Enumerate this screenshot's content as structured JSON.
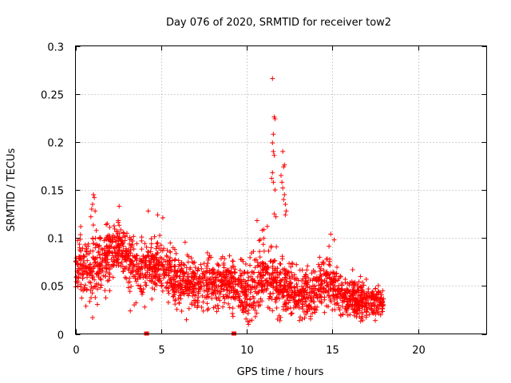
{
  "chart_data": {
    "type": "scatter",
    "title": "Day 076 of 2020, SRMTID for receiver tow2",
    "xlabel": "GPS time / hours",
    "ylabel": "SRMTID / TECUs",
    "xlim": [
      0,
      24
    ],
    "ylim": [
      0,
      0.3
    ],
    "xticks": [
      0,
      5,
      10,
      15,
      20
    ],
    "xtick_labels": [
      "0",
      "5",
      "10",
      "15",
      "20"
    ],
    "yticks": [
      0,
      0.05,
      0.1,
      0.15,
      0.2,
      0.25,
      0.3
    ],
    "ytick_labels": [
      "0",
      "0.05",
      "0.1",
      "0.15",
      "0.2",
      "0.25",
      "0.3"
    ],
    "grid": true,
    "marker": "+",
    "color": "#ff0000",
    "series": [
      {
        "name": "SRMTID",
        "profile_x": [
          0.0,
          0.25,
          0.5,
          1.0,
          1.5,
          2.0,
          2.5,
          3.0,
          3.5,
          4.0,
          4.5,
          5.0,
          5.5,
          6.0,
          7.0,
          8.0,
          9.0,
          9.5,
          10.0,
          10.5,
          11.0,
          11.5,
          12.0,
          12.5,
          13.0,
          14.0,
          14.5,
          15.0,
          15.5,
          16.0,
          16.5,
          17.0,
          17.5,
          18.0
        ],
        "profile_mean": [
          0.062,
          0.075,
          0.07,
          0.068,
          0.075,
          0.085,
          0.09,
          0.082,
          0.07,
          0.065,
          0.072,
          0.07,
          0.062,
          0.055,
          0.05,
          0.055,
          0.052,
          0.05,
          0.04,
          0.05,
          0.06,
          0.055,
          0.05,
          0.045,
          0.04,
          0.045,
          0.06,
          0.052,
          0.04,
          0.038,
          0.035,
          0.033,
          0.032,
          0.035
        ],
        "profile_spread": [
          0.018,
          0.02,
          0.022,
          0.025,
          0.022,
          0.022,
          0.02,
          0.02,
          0.02,
          0.022,
          0.022,
          0.022,
          0.02,
          0.02,
          0.018,
          0.02,
          0.018,
          0.02,
          0.02,
          0.025,
          0.025,
          0.025,
          0.02,
          0.02,
          0.018,
          0.02,
          0.02,
          0.02,
          0.015,
          0.014,
          0.014,
          0.013,
          0.012,
          0.01
        ],
        "n_points": 2200,
        "extra_points": [
          {
            "x": 11.5,
            "y": 0.266
          },
          {
            "x": 11.6,
            "y": 0.226
          },
          {
            "x": 11.65,
            "y": 0.224
          },
          {
            "x": 11.55,
            "y": 0.208
          },
          {
            "x": 11.5,
            "y": 0.199
          },
          {
            "x": 11.55,
            "y": 0.19
          },
          {
            "x": 11.6,
            "y": 0.186
          },
          {
            "x": 11.5,
            "y": 0.168
          },
          {
            "x": 11.45,
            "y": 0.162
          },
          {
            "x": 11.55,
            "y": 0.158
          },
          {
            "x": 11.65,
            "y": 0.15
          },
          {
            "x": 11.6,
            "y": 0.125
          },
          {
            "x": 11.7,
            "y": 0.122
          },
          {
            "x": 12.1,
            "y": 0.19
          },
          {
            "x": 12.2,
            "y": 0.176
          },
          {
            "x": 12.15,
            "y": 0.174
          },
          {
            "x": 12.0,
            "y": 0.165
          },
          {
            "x": 12.05,
            "y": 0.158
          },
          {
            "x": 12.1,
            "y": 0.152
          },
          {
            "x": 12.2,
            "y": 0.145
          },
          {
            "x": 12.15,
            "y": 0.14
          },
          {
            "x": 12.25,
            "y": 0.135
          },
          {
            "x": 12.3,
            "y": 0.128
          },
          {
            "x": 12.25,
            "y": 0.124
          },
          {
            "x": 11.2,
            "y": 0.112
          },
          {
            "x": 10.6,
            "y": 0.118
          },
          {
            "x": 10.9,
            "y": 0.108
          },
          {
            "x": 1.05,
            "y": 0.145
          },
          {
            "x": 1.1,
            "y": 0.142
          },
          {
            "x": 1.0,
            "y": 0.135
          },
          {
            "x": 0.95,
            "y": 0.13
          },
          {
            "x": 1.15,
            "y": 0.128
          },
          {
            "x": 0.9,
            "y": 0.122
          },
          {
            "x": 2.55,
            "y": 0.133
          },
          {
            "x": 2.5,
            "y": 0.118
          },
          {
            "x": 4.25,
            "y": 0.128
          },
          {
            "x": 4.8,
            "y": 0.124
          },
          {
            "x": 5.1,
            "y": 0.121
          },
          {
            "x": 14.9,
            "y": 0.104
          },
          {
            "x": 15.1,
            "y": 0.098
          },
          {
            "x": 1.0,
            "y": 0.017
          },
          {
            "x": 3.2,
            "y": 0.024
          },
          {
            "x": 10.1,
            "y": 0.01
          },
          {
            "x": 10.5,
            "y": 0.018
          },
          {
            "x": 17.5,
            "y": 0.014
          }
        ],
        "zero_markers": [
          {
            "x": 4.15,
            "y": 0.0
          },
          {
            "x": 9.25,
            "y": 0.0
          }
        ]
      }
    ]
  }
}
